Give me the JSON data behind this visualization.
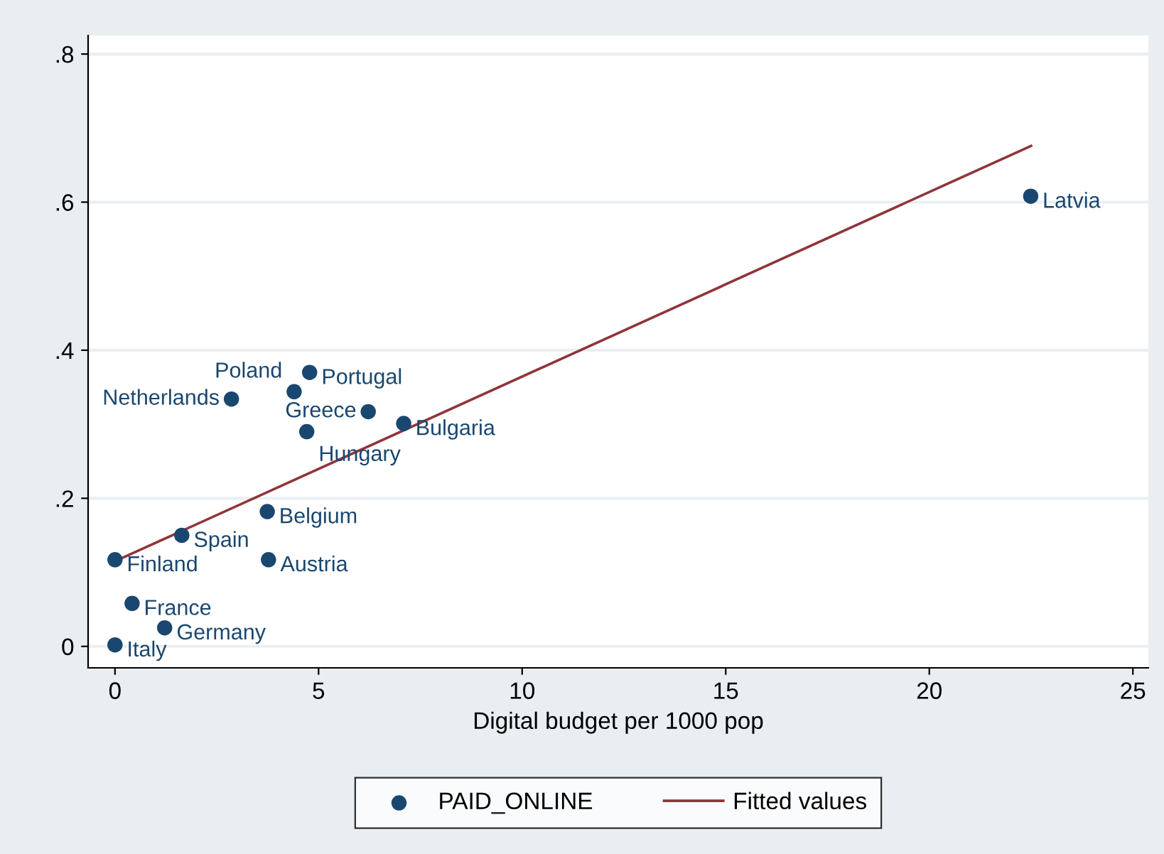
{
  "chart_data": {
    "type": "scatter",
    "xlabel": "Digital budget per 1000 pop",
    "xlim": [
      -0.66,
      25.38
    ],
    "xticks": [
      0,
      5,
      10,
      15,
      20,
      25
    ],
    "ylim": [
      -0.029,
      0.825
    ],
    "yticks": [
      {
        "value": 0,
        "label": "0"
      },
      {
        "value": 0.2,
        "label": ".2"
      },
      {
        "value": 0.4,
        "label": ".4"
      },
      {
        "value": 0.6,
        "label": ".6"
      },
      {
        "value": 0.8,
        "label": ".8"
      }
    ],
    "grid": "y",
    "legend": "bottom",
    "series": [
      {
        "name": "PAID_ONLINE",
        "marker": "circle",
        "color": "#1a476f",
        "x": [
          22.49,
          4.78,
          4.4,
          2.86,
          6.22,
          7.09,
          4.71,
          3.74,
          1.64,
          0,
          3.77,
          0.42,
          1.22,
          0
        ],
        "values": [
          0.608,
          0.37,
          0.344,
          0.334,
          0.317,
          0.301,
          0.29,
          0.182,
          0.15,
          0.117,
          0.117,
          0.058,
          0.025,
          0.002
        ]
      },
      {
        "name": "Fitted values",
        "type": "line",
        "color": "#90353b",
        "x": [
          0,
          22.5
        ],
        "values": [
          0.115,
          0.676
        ]
      }
    ],
    "annotations": [
      {
        "text": "Latvia",
        "x": 22.49,
        "y": 0.608
      },
      {
        "text": "Portugal",
        "x": 4.78,
        "y": 0.37
      },
      {
        "text": "Poland",
        "x": 4.4,
        "y": 0.344
      },
      {
        "text": "Netherlands",
        "x": 2.86,
        "y": 0.334
      },
      {
        "text": "Greece",
        "x": 6.22,
        "y": 0.317
      },
      {
        "text": "Bulgaria",
        "x": 7.09,
        "y": 0.301
      },
      {
        "text": "Hungary",
        "x": 4.71,
        "y": 0.29
      },
      {
        "text": "Belgium",
        "x": 3.74,
        "y": 0.182
      },
      {
        "text": "Spain",
        "x": 1.64,
        "y": 0.15
      },
      {
        "text": "Finland",
        "x": 0,
        "y": 0.117
      },
      {
        "text": "Austria",
        "x": 3.77,
        "y": 0.117
      },
      {
        "text": "France",
        "x": 0.42,
        "y": 0.058
      },
      {
        "text": "Germany",
        "x": 1.22,
        "y": 0.025
      },
      {
        "text": "Italy",
        "x": 0,
        "y": 0.002
      }
    ]
  }
}
